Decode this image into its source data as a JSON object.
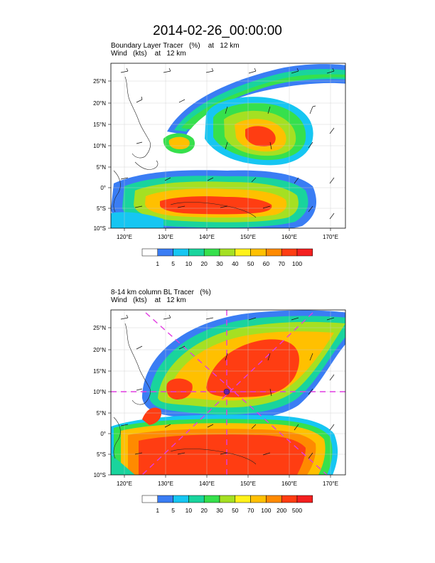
{
  "title": "2014-02-26_00:00:00",
  "panel1": {
    "subtitle1": "Boundary Layer Tracer   (%)    at   12 km",
    "subtitle2": "Wind   (kts)    at   12 km",
    "lat_ticks": [
      "25°N",
      "20°N",
      "15°N",
      "10°N",
      "5°N",
      "0°",
      "5°S",
      "10°S"
    ],
    "lon_ticks": [
      "120°E",
      "130°E",
      "140°E",
      "150°E",
      "160°E",
      "170°E"
    ],
    "colorbar_labels": [
      "1",
      "5",
      "10",
      "20",
      "30",
      "40",
      "50",
      "60",
      "70",
      "100"
    ]
  },
  "panel2": {
    "subtitle1": "8-14 km column BL Tracer   (%)",
    "subtitle2": "Wind   (kts)    at   12 km",
    "lat_ticks": [
      "25°N",
      "20°N",
      "15°N",
      "10°N",
      "5°N",
      "0°",
      "5°S",
      "10°S"
    ],
    "lon_ticks": [
      "120°E",
      "130°E",
      "140°E",
      "150°E",
      "160°E",
      "170°E"
    ],
    "colorbar_labels": [
      "1",
      "5",
      "10",
      "20",
      "30",
      "50",
      "70",
      "100",
      "200",
      "500"
    ]
  },
  "colors": [
    "#ffffff",
    "#3a7df4",
    "#16c6f2",
    "#19d49d",
    "#36e04c",
    "#a5e022",
    "#fff21a",
    "#ffc000",
    "#ff8a00",
    "#ff3d12",
    "#f41f1f"
  ]
}
